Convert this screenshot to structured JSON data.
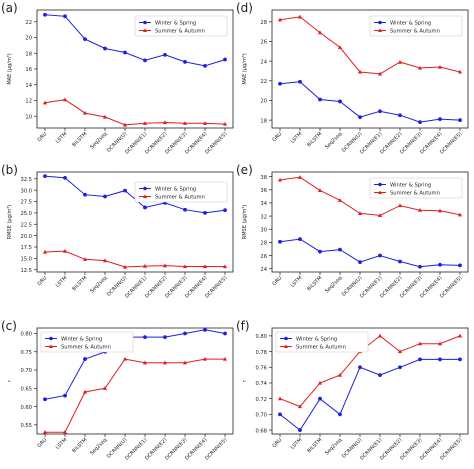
{
  "colors": {
    "series_1": "#1f1fe0",
    "series_2": "#e02020",
    "axis": "#222222"
  },
  "chart_data": [
    {
      "id": "a",
      "panel_label": "(a)",
      "type": "line",
      "ylabel": "MAE (μg/m³)",
      "categories": [
        "GRU",
        "LSTM",
        "BiLSTM",
        "Seq2seq",
        "DCRNN(U)",
        "DCRNN(E1)",
        "DCRNN(E2)",
        "DCRNN(E3)",
        "DCRNN(E4)",
        "DCRNN(E5)"
      ],
      "ylim": [
        8.5,
        23.5
      ],
      "yticks": [
        "10",
        "12",
        "14",
        "16",
        "18",
        "20",
        "22"
      ],
      "ytick_values": [
        10,
        12,
        14,
        16,
        18,
        20,
        22
      ],
      "legend": "top-right",
      "series": [
        {
          "name": "Winter & Spring",
          "values": [
            22.9,
            22.7,
            19.8,
            18.6,
            18.1,
            17.1,
            17.8,
            16.9,
            16.4,
            17.2
          ]
        },
        {
          "name": "Summer & Autumn",
          "values": [
            11.7,
            12.1,
            10.4,
            9.9,
            8.9,
            9.1,
            9.2,
            9.1,
            9.1,
            9.0
          ]
        }
      ]
    },
    {
      "id": "b",
      "panel_label": "(b)",
      "type": "line",
      "ylabel": "RMSE (μg/m³)",
      "categories": [
        "GRU",
        "LSTM",
        "BiLSTM",
        "Seq2seq",
        "DCRNN(U)",
        "DCRNN(E1)",
        "DCRNN(E2)",
        "DCRNN(E3)",
        "DCRNN(E4)",
        "DCRNN(E5)"
      ],
      "ylim": [
        12.0,
        34.0
      ],
      "yticks": [
        "12.5",
        "15.0",
        "17.5",
        "20.0",
        "22.5",
        "25.0",
        "27.5",
        "30.0",
        "32.5"
      ],
      "ytick_values": [
        12.5,
        15,
        17.5,
        20,
        22.5,
        25,
        27.5,
        30,
        32.5
      ],
      "legend": "right",
      "series": [
        {
          "name": "Winter & Spring",
          "values": [
            33.1,
            32.7,
            29.0,
            28.6,
            29.9,
            26.2,
            27.2,
            25.7,
            25.0,
            25.6
          ]
        },
        {
          "name": "Summer & Autumn",
          "values": [
            16.4,
            16.6,
            14.8,
            14.5,
            13.1,
            13.3,
            13.4,
            13.2,
            13.2,
            13.2
          ]
        }
      ]
    },
    {
      "id": "c",
      "panel_label": "(c)",
      "type": "line",
      "ylabel": "r",
      "categories": [
        "GRU",
        "LSTM",
        "BiLSTM",
        "Seq2seq",
        "DCRNN(U)",
        "DCRNN(E1)",
        "DCRNN(E2)",
        "DCRNN(E3)",
        "DCRNN(E4)",
        "DCRNN(E5)"
      ],
      "ylim": [
        0.525,
        0.815
      ],
      "yticks": [
        "0.55",
        "0.60",
        "0.65",
        "0.70",
        "0.75",
        "0.80"
      ],
      "ytick_values": [
        0.55,
        0.6,
        0.65,
        0.7,
        0.75,
        0.8
      ],
      "legend": "top-left",
      "series": [
        {
          "name": "Winter & Spring",
          "values": [
            0.62,
            0.63,
            0.73,
            0.75,
            0.79,
            0.79,
            0.79,
            0.8,
            0.81,
            0.8
          ]
        },
        {
          "name": "Summer & Autumn",
          "values": [
            0.53,
            0.53,
            0.64,
            0.65,
            0.73,
            0.72,
            0.72,
            0.72,
            0.73,
            0.73
          ]
        }
      ]
    },
    {
      "id": "d",
      "panel_label": "(d)",
      "type": "line",
      "ylabel": "MAE (μg/m³)",
      "categories": [
        "GRU",
        "LSTM",
        "BiLSTM",
        "Seq2seq",
        "DCRNN(U)",
        "DCRNN(E1)",
        "DCRNN(E2)",
        "DCRNN(E3)",
        "DCRNN(E4)",
        "DCRNN(E5)"
      ],
      "ylim": [
        17.2,
        29.2
      ],
      "yticks": [
        "18",
        "20",
        "22",
        "24",
        "26",
        "28"
      ],
      "ytick_values": [
        18,
        20,
        22,
        24,
        26,
        28
      ],
      "legend": "top-right",
      "series": [
        {
          "name": "Winter & Spring",
          "values": [
            21.7,
            21.9,
            20.1,
            19.9,
            18.3,
            18.9,
            18.5,
            17.8,
            18.1,
            18.0
          ]
        },
        {
          "name": "Summer & Autumn",
          "values": [
            28.2,
            28.5,
            26.9,
            25.4,
            22.9,
            22.7,
            23.9,
            23.3,
            23.4,
            22.9
          ]
        }
      ]
    },
    {
      "id": "e",
      "panel_label": "(e)",
      "type": "line",
      "ylabel": "RMSE (μg/m³)",
      "categories": [
        "GRU",
        "LSTM",
        "BiLSTM",
        "Seq2seq",
        "DCRNN(U)",
        "DCRNN(E1)",
        "DCRNN(E2)",
        "DCRNN(E3)",
        "DCRNN(E4)",
        "DCRNN(E5)"
      ],
      "ylim": [
        23.5,
        38.7
      ],
      "yticks": [
        "24",
        "26",
        "28",
        "30",
        "32",
        "34",
        "36",
        "38"
      ],
      "ytick_values": [
        24,
        26,
        28,
        30,
        32,
        34,
        36,
        38
      ],
      "legend": "top-right",
      "series": [
        {
          "name": "Winter & Spring",
          "values": [
            28.1,
            28.5,
            26.6,
            26.9,
            25.0,
            26.0,
            25.1,
            24.3,
            24.6,
            24.5
          ]
        },
        {
          "name": "Summer & Autumn",
          "values": [
            37.5,
            37.9,
            35.9,
            34.4,
            32.4,
            32.1,
            33.6,
            32.9,
            32.8,
            32.2
          ]
        }
      ]
    },
    {
      "id": "f",
      "panel_label": "(f)",
      "type": "line",
      "ylabel": "r",
      "categories": [
        "GRU",
        "LSTM",
        "BiLSTM",
        "Seq2seq",
        "DCRNN(U)",
        "DCRNN(E1)",
        "DCRNN(E2)",
        "DCRNN(E3)",
        "DCRNN(E4)",
        "DCRNN(E5)"
      ],
      "ylim": [
        0.675,
        0.81
      ],
      "yticks": [
        "0.68",
        "0.70",
        "0.72",
        "0.74",
        "0.76",
        "0.78",
        "0.80"
      ],
      "ytick_values": [
        0.68,
        0.7,
        0.72,
        0.74,
        0.76,
        0.78,
        0.8
      ],
      "legend": "top-left",
      "series": [
        {
          "name": "Winter & Spring",
          "values": [
            0.7,
            0.68,
            0.72,
            0.7,
            0.76,
            0.75,
            0.76,
            0.77,
            0.77,
            0.77
          ]
        },
        {
          "name": "Summer & Autumn",
          "values": [
            0.72,
            0.71,
            0.74,
            0.75,
            0.78,
            0.8,
            0.78,
            0.79,
            0.79,
            0.8
          ]
        }
      ]
    }
  ]
}
